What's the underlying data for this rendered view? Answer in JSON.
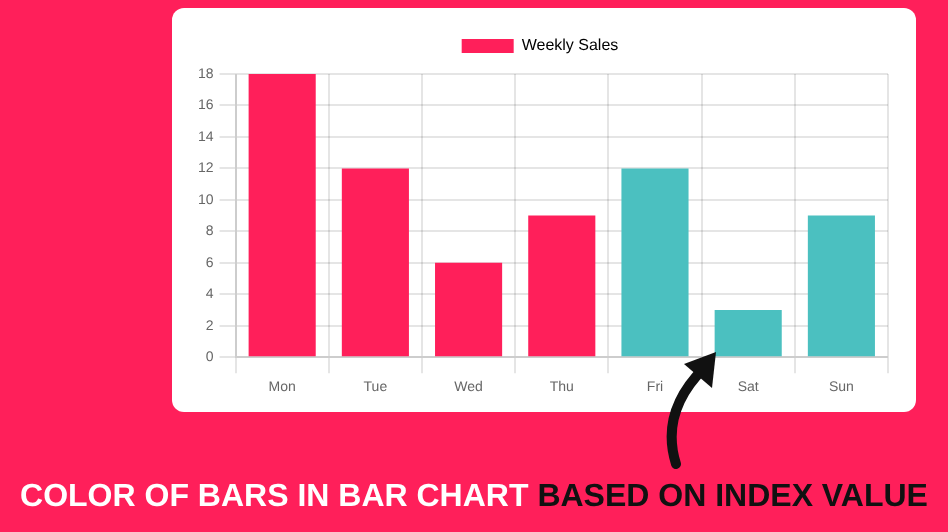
{
  "chart_data": {
    "type": "bar",
    "categories": [
      "Mon",
      "Tue",
      "Wed",
      "Thu",
      "Fri",
      "Sat",
      "Sun"
    ],
    "series": [
      {
        "name": "Weekly Sales",
        "colors": [
          "#ff1f5a",
          "#ff1f5a",
          "#ff1f5a",
          "#ff1f5a",
          "#4bc0c0",
          "#4bc0c0",
          "#4bc0c0"
        ],
        "values": [
          18,
          12,
          6,
          9,
          12,
          3,
          9
        ]
      }
    ],
    "ylim": [
      0,
      18
    ],
    "yticks": [
      0,
      2,
      4,
      6,
      8,
      10,
      12,
      14,
      16,
      18
    ],
    "grid": true,
    "legend": "top",
    "annotations": [
      "COLOR OF BARS IN BAR CHART",
      "BASED ON INDEX VALUE"
    ]
  }
}
